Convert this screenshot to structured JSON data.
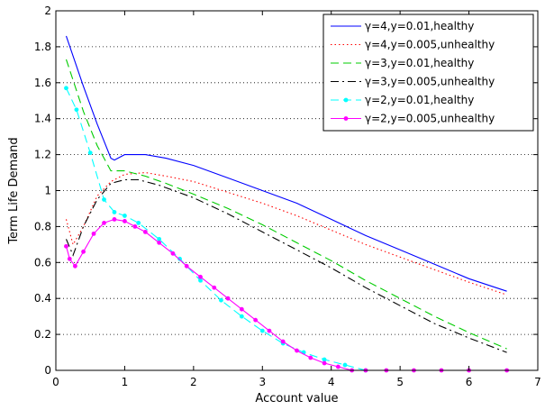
{
  "chart_data": {
    "type": "line",
    "xlabel": "Account value",
    "ylabel": "Term Life Demand",
    "xlim": [
      0,
      7
    ],
    "ylim": [
      0,
      2
    ],
    "x_ticks": [
      0,
      1,
      2,
      3,
      4,
      5,
      6,
      7
    ],
    "y_ticks": [
      0,
      0.2,
      0.4,
      0.6,
      0.8,
      1,
      1.2,
      1.4,
      1.6,
      1.8,
      2
    ],
    "x_tick_labels": [
      "0",
      "1",
      "2",
      "3",
      "4",
      "5",
      "6",
      "7"
    ],
    "y_tick_labels": [
      "0",
      "0.2",
      "0.4",
      "0.6",
      "0.8",
      "1",
      "1.2",
      "1.4",
      "1.6",
      "1.8",
      "2"
    ],
    "grid": "horizontal dotted",
    "legend_position": "top-right",
    "series": [
      {
        "name": "γ=4,y=0.01,healthy",
        "color": "#0000ff",
        "dash": "solid",
        "marker": "none",
        "x": [
          0.15,
          0.4,
          0.6,
          0.8,
          0.85,
          1.0,
          1.3,
          1.6,
          2.0,
          2.5,
          3.0,
          3.5,
          4.0,
          4.5,
          5.0,
          5.5,
          6.0,
          6.55
        ],
        "y": [
          1.86,
          1.58,
          1.37,
          1.18,
          1.17,
          1.2,
          1.2,
          1.18,
          1.14,
          1.07,
          1.0,
          0.93,
          0.84,
          0.75,
          0.67,
          0.59,
          0.51,
          0.44
        ]
      },
      {
        "name": "γ=4,y=0.005,unhealthy",
        "color": "#ff0000",
        "dash": "dotted",
        "marker": "none",
        "x": [
          0.15,
          0.25,
          0.4,
          0.6,
          0.8,
          1.0,
          1.3,
          1.6,
          2.0,
          2.5,
          3.0,
          3.5,
          4.0,
          4.5,
          5.0,
          5.5,
          6.0,
          6.55
        ],
        "y": [
          0.84,
          0.7,
          0.8,
          0.97,
          1.05,
          1.09,
          1.1,
          1.08,
          1.05,
          0.99,
          0.93,
          0.86,
          0.78,
          0.7,
          0.63,
          0.56,
          0.49,
          0.42
        ]
      },
      {
        "name": "γ=3,y=0.01,healthy",
        "color": "#00cc00",
        "dash": "dashed",
        "marker": "none",
        "x": [
          0.15,
          0.4,
          0.6,
          0.8,
          1.0,
          1.3,
          1.6,
          2.0,
          2.5,
          3.0,
          3.5,
          4.0,
          4.5,
          5.0,
          5.5,
          6.0,
          6.55
        ],
        "y": [
          1.73,
          1.44,
          1.25,
          1.11,
          1.11,
          1.08,
          1.04,
          0.98,
          0.9,
          0.81,
          0.71,
          0.61,
          0.5,
          0.4,
          0.3,
          0.21,
          0.12
        ]
      },
      {
        "name": "γ=3,y=0.005,unhealthy",
        "color": "#000000",
        "dash": "dashdot",
        "marker": "none",
        "x": [
          0.15,
          0.25,
          0.4,
          0.6,
          0.8,
          1.0,
          1.2,
          1.5,
          2.0,
          2.5,
          3.0,
          3.5,
          4.0,
          4.5,
          5.0,
          5.5,
          6.0,
          6.55
        ],
        "y": [
          0.73,
          0.64,
          0.8,
          0.95,
          1.04,
          1.06,
          1.06,
          1.03,
          0.96,
          0.87,
          0.77,
          0.67,
          0.57,
          0.46,
          0.36,
          0.26,
          0.18,
          0.1
        ]
      },
      {
        "name": "γ=2,y=0.01,healthy",
        "color": "#00ffff",
        "dash": "dashed",
        "marker": "dot",
        "x": [
          0.15,
          0.3,
          0.5,
          0.7,
          0.85,
          1.0,
          1.2,
          1.5,
          1.8,
          2.1,
          2.4,
          2.7,
          3.0,
          3.3,
          3.6,
          3.9,
          4.2,
          4.5
        ],
        "y": [
          1.57,
          1.45,
          1.21,
          0.95,
          0.88,
          0.86,
          0.82,
          0.73,
          0.62,
          0.5,
          0.39,
          0.3,
          0.22,
          0.15,
          0.1,
          0.06,
          0.03,
          0.0
        ]
      },
      {
        "name": "γ=2,y=0.005,unhealthy",
        "color": "#ff00ff",
        "dash": "solid",
        "marker": "dot",
        "x": [
          0.15,
          0.2,
          0.28,
          0.4,
          0.55,
          0.7,
          0.85,
          1.0,
          1.15,
          1.3,
          1.5,
          1.7,
          1.9,
          2.1,
          2.3,
          2.5,
          2.7,
          2.9,
          3.1,
          3.3,
          3.5,
          3.7,
          3.9,
          4.1,
          4.3,
          4.5,
          4.8,
          5.2,
          5.6,
          6.0,
          6.55
        ],
        "y": [
          0.69,
          0.62,
          0.58,
          0.66,
          0.76,
          0.82,
          0.84,
          0.83,
          0.8,
          0.77,
          0.71,
          0.65,
          0.58,
          0.52,
          0.46,
          0.4,
          0.34,
          0.28,
          0.22,
          0.16,
          0.11,
          0.07,
          0.04,
          0.02,
          0.0,
          0.0,
          0.0,
          0.0,
          0.0,
          0.0,
          0.0
        ]
      }
    ]
  }
}
